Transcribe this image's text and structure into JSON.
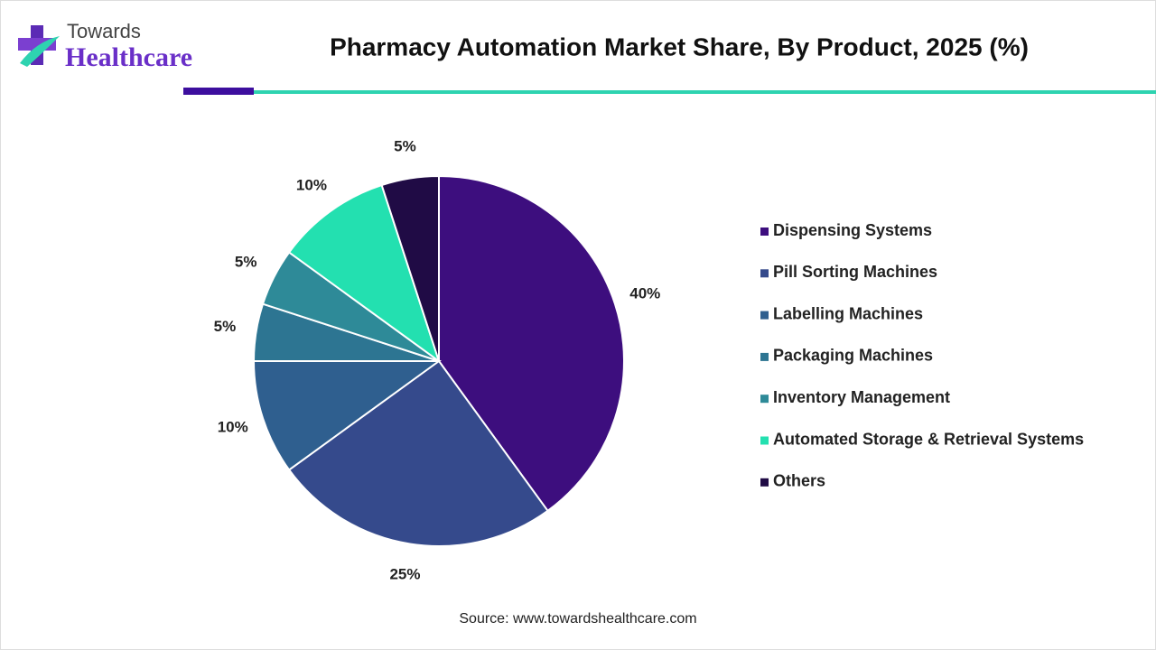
{
  "logo": {
    "line1": "Towards",
    "line2": "Healthcare"
  },
  "chart_data": {
    "type": "pie",
    "title": "Pharmacy Automation Market Share, By Product, 2025 (%)",
    "categories": [
      "Dispensing Systems",
      "Pill Sorting Machines",
      "Labelling Machines",
      "Packaging Machines",
      "Inventory Management",
      "Automated Storage & Retrieval Systems",
      "Others"
    ],
    "values": [
      40,
      25,
      10,
      5,
      5,
      10,
      5
    ],
    "value_labels": [
      "40%",
      "25%",
      "10%",
      "5%",
      "5%",
      "10%",
      "5%"
    ],
    "colors": [
      "#3d0e7e",
      "#354a8c",
      "#2f5f8f",
      "#2d7592",
      "#2e8a98",
      "#23e0b0",
      "#200b45"
    ],
    "legend": "right",
    "source": "Source: www.towardshealthcare.com"
  }
}
